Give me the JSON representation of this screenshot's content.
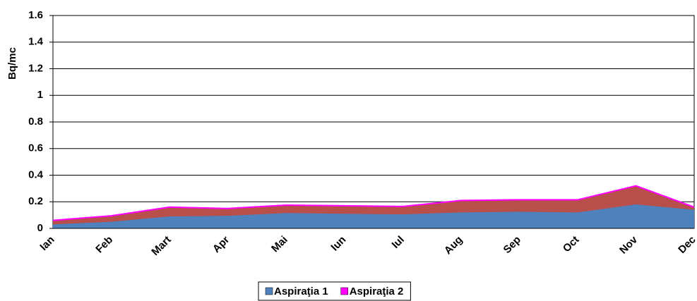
{
  "chart_data": {
    "type": "stacked_area",
    "ylabel": "Bq/mc",
    "categories": [
      "Ian",
      "Feb",
      "Mart",
      "Apr",
      "Mai",
      "Iun",
      "Iul",
      "Aug",
      "Sep",
      "Oct",
      "Nov",
      "Dec"
    ],
    "series": [
      {
        "name": "Aspiraţia 1",
        "color": "#4f81bd",
        "fill": "#4f81bd",
        "values": [
          0.03,
          0.05,
          0.09,
          0.095,
          0.115,
          0.11,
          0.105,
          0.12,
          0.125,
          0.12,
          0.18,
          0.14
        ]
      },
      {
        "name": "Aspiraţia 2",
        "color": "#ff00ff",
        "fill": "#b84f4b",
        "values": [
          0.03,
          0.045,
          0.07,
          0.055,
          0.06,
          0.06,
          0.06,
          0.09,
          0.09,
          0.095,
          0.14,
          0.02
        ]
      }
    ],
    "ylim": [
      0,
      1.6
    ],
    "yticks": [
      0,
      0.2,
      0.4,
      0.6,
      0.8,
      1,
      1.2,
      1.4,
      1.6
    ],
    "grid": true,
    "legend": "bottom"
  }
}
